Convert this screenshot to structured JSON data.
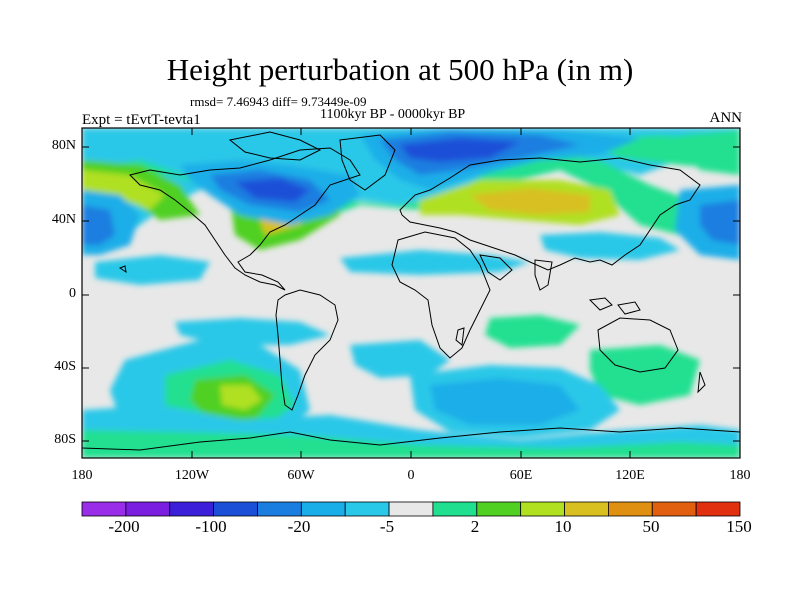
{
  "header": {
    "title": "Height perturbation at 500 hPa (in m)",
    "stats": "rmsd= 7.46943 diff= 9.73449e-09",
    "period": "1100kyr BP - 0000kyr BP",
    "experiment": "Expt = tEvtT-tevta1",
    "season": "ANN"
  },
  "axes": {
    "lat_ticks": [
      "80N",
      "40N",
      "0",
      "40S",
      "80S"
    ],
    "lon_ticks": [
      "180",
      "120W",
      "60W",
      "0",
      "60E",
      "120E",
      "180"
    ]
  },
  "colorbar": {
    "colors": [
      "#9a2ee8",
      "#7a1fe0",
      "#3c1fd8",
      "#1c4fd8",
      "#1a7ee0",
      "#1aaee8",
      "#2ac8e8",
      "#e8e8e8",
      "#20e090",
      "#50d020",
      "#b0e020",
      "#d8c020",
      "#e09010",
      "#e06010",
      "#e03010"
    ],
    "labels": [
      "-200",
      "-100",
      "-20",
      "-5",
      "2",
      "10",
      "50",
      "150"
    ]
  }
}
